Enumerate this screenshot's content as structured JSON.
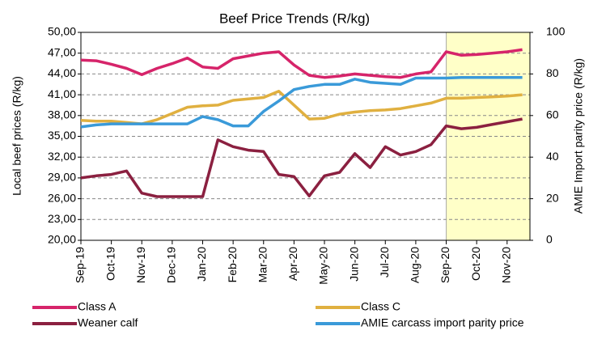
{
  "chart_data": {
    "type": "line",
    "title": "Beef Price Trends (R/kg)",
    "ylabel": "Local beef prices (R/kg)",
    "y2label": "AMIE Import parity price (R/kg)",
    "categories": [
      "Sep-19",
      null,
      "Oct-19",
      null,
      "Nov-19",
      null,
      "Dec-19",
      null,
      "Jan-20",
      null,
      "Feb-20",
      null,
      "Mar-20",
      null,
      "Apr-20",
      null,
      "May-20",
      null,
      "Jun-20",
      null,
      "Jul-20",
      null,
      "Aug-20",
      null,
      "Sep-20",
      null,
      "Oct-20",
      null,
      "Nov-20",
      null
    ],
    "ylim": [
      20,
      50
    ],
    "yticks": [
      {
        "value": 20,
        "label": "20,00"
      },
      {
        "value": 23,
        "label": "23,00"
      },
      {
        "value": 26,
        "label": "26,00"
      },
      {
        "value": 29,
        "label": "29,00"
      },
      {
        "value": 32,
        "label": "32,00"
      },
      {
        "value": 35,
        "label": "35,00"
      },
      {
        "value": 38,
        "label": "38,00"
      },
      {
        "value": 41,
        "label": "41,00"
      },
      {
        "value": 44,
        "label": "44,00"
      },
      {
        "value": 47,
        "label": "47,00"
      },
      {
        "value": 50,
        "label": "50,00"
      }
    ],
    "y2lim": [
      0,
      100
    ],
    "y2ticks": [
      0,
      20,
      40,
      60,
      80,
      100
    ],
    "grid": true,
    "shaded_region": {
      "from": "Sep-20",
      "color": "#ffffc8"
    },
    "series": [
      {
        "name": "Class  A",
        "color": "#d6246a",
        "values": [
          46.0,
          45.9,
          45.4,
          44.8,
          43.9,
          44.8,
          45.5,
          46.3,
          45.0,
          44.8,
          46.2,
          46.6,
          47.0,
          47.2,
          45.3,
          43.8,
          43.5,
          43.7,
          44.0,
          43.8,
          43.6,
          43.5,
          44.0,
          44.3,
          47.2,
          46.7,
          46.8,
          47.0,
          47.2,
          47.5
        ]
      },
      {
        "name": "Class C",
        "color": "#e0b040",
        "values": [
          37.3,
          37.2,
          37.2,
          37.0,
          36.8,
          37.4,
          38.3,
          39.2,
          39.4,
          39.5,
          40.2,
          40.4,
          40.6,
          41.5,
          39.5,
          37.5,
          37.6,
          38.2,
          38.5,
          38.7,
          38.8,
          39.0,
          39.4,
          39.8,
          40.5,
          40.5,
          40.6,
          40.7,
          40.8,
          41.0
        ]
      },
      {
        "name": "Weaner calf",
        "color": "#8b2040",
        "values": [
          29.0,
          29.3,
          29.5,
          30.0,
          26.8,
          26.3,
          26.3,
          26.3,
          26.3,
          34.5,
          33.5,
          33.0,
          32.8,
          29.5,
          29.2,
          26.4,
          29.3,
          29.8,
          32.5,
          30.5,
          33.5,
          32.3,
          32.8,
          33.8,
          36.5,
          36.1,
          36.3,
          36.7,
          37.1,
          37.5
        ]
      },
      {
        "name": "AMIE carcass import parity price",
        "color": "#3a9ad9",
        "axis": "y2",
        "values": [
          54.5,
          55.5,
          56.0,
          56.0,
          56.0,
          56.0,
          56.0,
          56.0,
          59.5,
          58.0,
          55.0,
          55.0,
          62.0,
          67.0,
          72.5,
          74.0,
          75.0,
          75.0,
          77.5,
          76.0,
          75.5,
          75.0,
          78.0,
          78.0,
          78.0,
          78.3,
          78.3,
          78.3,
          78.3,
          78.3
        ]
      }
    ]
  }
}
